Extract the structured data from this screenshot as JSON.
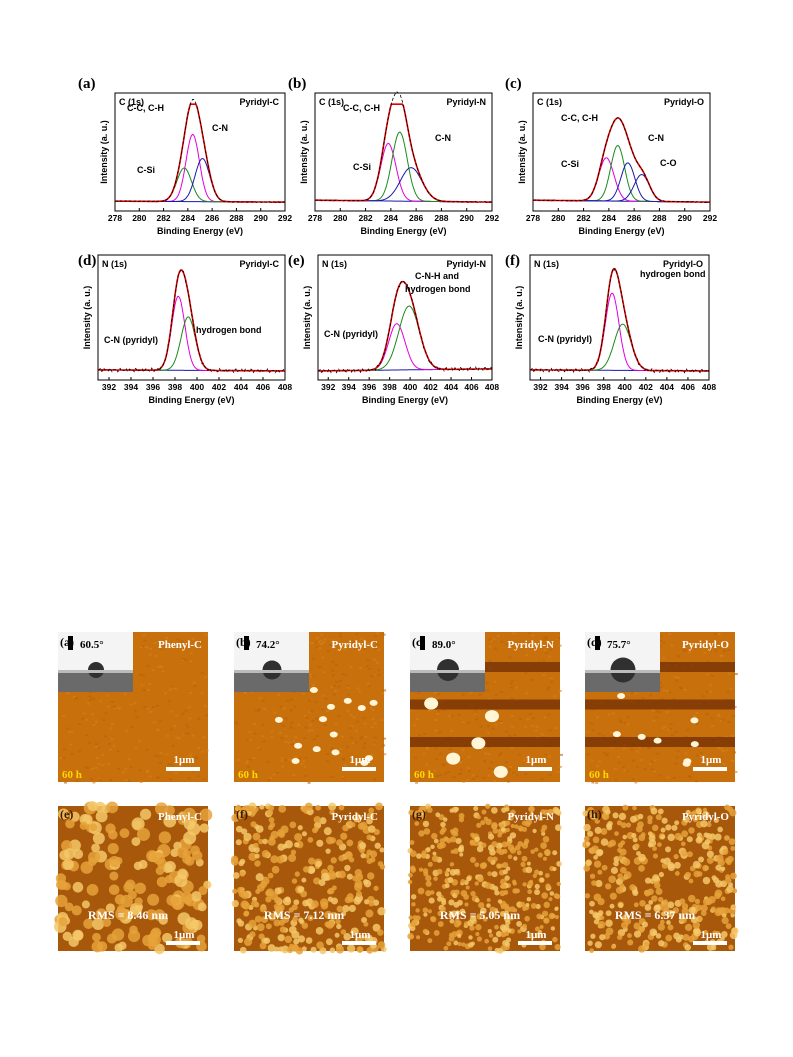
{
  "figure1": {
    "x_axis_label": "Binding Energy (eV)",
    "y_axis_label": "Intensity (a. u.)",
    "panels": [
      {
        "letter": "(a)",
        "region": "C (1s)",
        "sample": "Pyridyl-C",
        "ticks": [
          "278",
          "280",
          "282",
          "284",
          "286",
          "288",
          "290",
          "292"
        ],
        "xlim": [
          278,
          292
        ],
        "labels": [
          "C-C, C-H",
          "C-N",
          "C-Si"
        ]
      },
      {
        "letter": "(b)",
        "region": "C (1s)",
        "sample": "Pyridyl-N",
        "ticks": [
          "278",
          "280",
          "282",
          "284",
          "286",
          "288",
          "290",
          "292"
        ],
        "xlim": [
          278,
          292
        ],
        "labels": [
          "C-C, C-H",
          "C-N",
          "C-Si"
        ]
      },
      {
        "letter": "(c)",
        "region": "C (1s)",
        "sample": "Pyridyl-O",
        "ticks": [
          "278",
          "280",
          "282",
          "284",
          "286",
          "288",
          "290",
          "292"
        ],
        "xlim": [
          278,
          292
        ],
        "labels": [
          "C-C, C-H",
          "C-N",
          "C-Si",
          "C-O"
        ]
      },
      {
        "letter": "(d)",
        "region": "N (1s)",
        "sample": "Pyridyl-C",
        "ticks": [
          "392",
          "394",
          "396",
          "398",
          "400",
          "402",
          "404",
          "406",
          "408"
        ],
        "xlim": [
          391,
          408
        ],
        "labels": [
          "C-N (pyridyl)",
          "hydrogen bond"
        ]
      },
      {
        "letter": "(e)",
        "region": "N (1s)",
        "sample": "Pyridyl-N",
        "ticks": [
          "392",
          "394",
          "396",
          "398",
          "400",
          "402",
          "404",
          "406",
          "408"
        ],
        "xlim": [
          391,
          408
        ],
        "labels": [
          "C-N (pyridyl)",
          "C-N-H and",
          "hydrogen bond"
        ]
      },
      {
        "letter": "(f)",
        "region": "N (1s)",
        "sample": "Pyridyl-O",
        "ticks": [
          "392",
          "394",
          "396",
          "398",
          "400",
          "402",
          "404",
          "406",
          "408"
        ],
        "xlim": [
          391,
          408
        ],
        "labels": [
          "C-N (pyridyl)",
          "hydrogen bond"
        ]
      }
    ]
  },
  "figure2": {
    "top_row": [
      {
        "letter": "(a)",
        "sample": "Phenyl-C",
        "angle": "60.5°",
        "time": "60 h",
        "scale": "1μm"
      },
      {
        "letter": "(b)",
        "sample": "Pyridyl-C",
        "angle": "74.2°",
        "time": "60 h",
        "scale": "1μm"
      },
      {
        "letter": "(c)",
        "sample": "Pyridyl-N",
        "angle": "89.0°",
        "time": "60 h",
        "scale": "1μm"
      },
      {
        "letter": "(d)",
        "sample": "Pyridyl-O",
        "angle": "75.7°",
        "time": "60 h",
        "scale": "1μm"
      }
    ],
    "bottom_row": [
      {
        "letter": "(e)",
        "sample": "Phenyl-C",
        "rms": "RMS = 8.46 nm",
        "scale": "1μm"
      },
      {
        "letter": "(f)",
        "sample": "Pyridyl-C",
        "rms": "RMS = 7.12 nm",
        "scale": "1μm"
      },
      {
        "letter": "(g)",
        "sample": "Pyridyl-N",
        "rms": "RMS = 5.05 nm",
        "scale": "1μm"
      },
      {
        "letter": "(h)",
        "sample": "Pyridyl-O",
        "rms": "RMS = 6.37 nm",
        "scale": "1μm"
      }
    ]
  },
  "colors": {
    "envelope": "#e00000",
    "green": "#1a8a1a",
    "magenta": "#e000e0",
    "blue": "#1a1aaa",
    "afm_base": "#c8700c"
  }
}
